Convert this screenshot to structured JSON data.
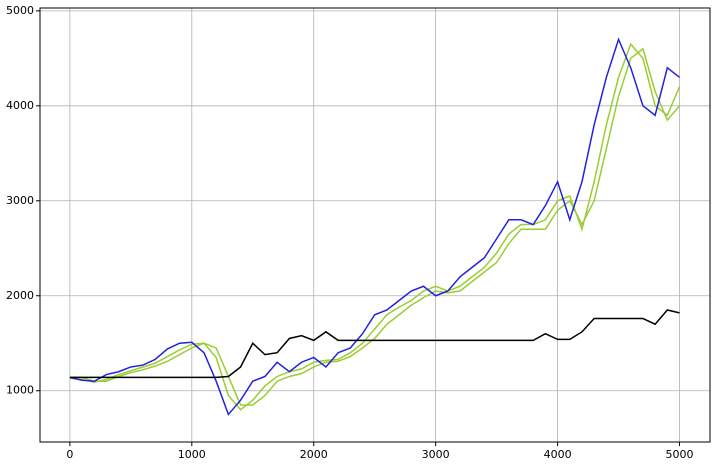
{
  "chart_data": {
    "type": "line",
    "x": [
      0,
      100,
      200,
      300,
      400,
      500,
      600,
      700,
      800,
      900,
      1000,
      1100,
      1200,
      1300,
      1400,
      1500,
      1600,
      1700,
      1800,
      1900,
      2000,
      2100,
      2200,
      2300,
      2400,
      2500,
      2600,
      2700,
      2800,
      2900,
      3000,
      3100,
      3200,
      3300,
      3400,
      3500,
      3600,
      3700,
      3800,
      3900,
      4000,
      4100,
      4200,
      4300,
      4400,
      4500,
      4600,
      4700,
      4800,
      4900,
      5000
    ],
    "series": [
      {
        "color": "#9acd32",
        "values": [
          1130,
          1120,
          1090,
          1120,
          1170,
          1210,
          1250,
          1290,
          1360,
          1430,
          1490,
          1500,
          1350,
          950,
          800,
          900,
          1050,
          1150,
          1200,
          1230,
          1300,
          1320,
          1330,
          1400,
          1500,
          1650,
          1800,
          1880,
          1950,
          2050,
          2100,
          2050,
          2100,
          2200,
          2300,
          2450,
          2650,
          2750,
          2750,
          2800,
          3000,
          3050,
          2700,
          3200,
          3800,
          4300,
          4650,
          4500,
          4000,
          3900,
          4200
        ]
      },
      {
        "color": "#9acd32",
        "values": [
          1140,
          1140,
          1100,
          1100,
          1150,
          1190,
          1220,
          1260,
          1310,
          1380,
          1450,
          1500,
          1450,
          1150,
          850,
          850,
          950,
          1100,
          1150,
          1180,
          1250,
          1300,
          1310,
          1360,
          1450,
          1550,
          1700,
          1800,
          1900,
          1980,
          2050,
          2030,
          2050,
          2150,
          2250,
          2350,
          2550,
          2700,
          2700,
          2700,
          2900,
          3000,
          2750,
          3000,
          3550,
          4100,
          4500,
          4600,
          4150,
          3850,
          4000
        ]
      },
      {
        "color": "#2222dd",
        "values": [
          1140,
          1110,
          1100,
          1170,
          1200,
          1250,
          1270,
          1330,
          1440,
          1500,
          1510,
          1400,
          1100,
          750,
          900,
          1100,
          1150,
          1300,
          1200,
          1300,
          1350,
          1250,
          1400,
          1450,
          1600,
          1800,
          1850,
          1950,
          2050,
          2100,
          2000,
          2050,
          2200,
          2300,
          2400,
          2600,
          2800,
          2800,
          2750,
          2950,
          3200,
          2800,
          3200,
          3800,
          4300,
          4700,
          4400,
          4000,
          3900,
          4400,
          4300
        ]
      },
      {
        "color": "#000000",
        "values": [
          1140,
          1140,
          1140,
          1140,
          1140,
          1140,
          1140,
          1140,
          1140,
          1140,
          1140,
          1140,
          1140,
          1150,
          1250,
          1500,
          1380,
          1400,
          1550,
          1580,
          1530,
          1620,
          1530,
          1530,
          1530,
          1530,
          1530,
          1530,
          1530,
          1530,
          1530,
          1530,
          1530,
          1530,
          1530,
          1530,
          1530,
          1530,
          1530,
          1600,
          1540,
          1540,
          1620,
          1760,
          1760,
          1760,
          1760,
          1760,
          1700,
          1850,
          1820
        ]
      }
    ],
    "xlim": [
      -245,
      5250
    ],
    "ylim": [
      460,
      5030
    ],
    "xticks": [
      0,
      1000,
      2000,
      3000,
      4000,
      5000
    ],
    "yticks": [
      1000,
      2000,
      3000,
      4000,
      5000
    ],
    "grid": true
  }
}
